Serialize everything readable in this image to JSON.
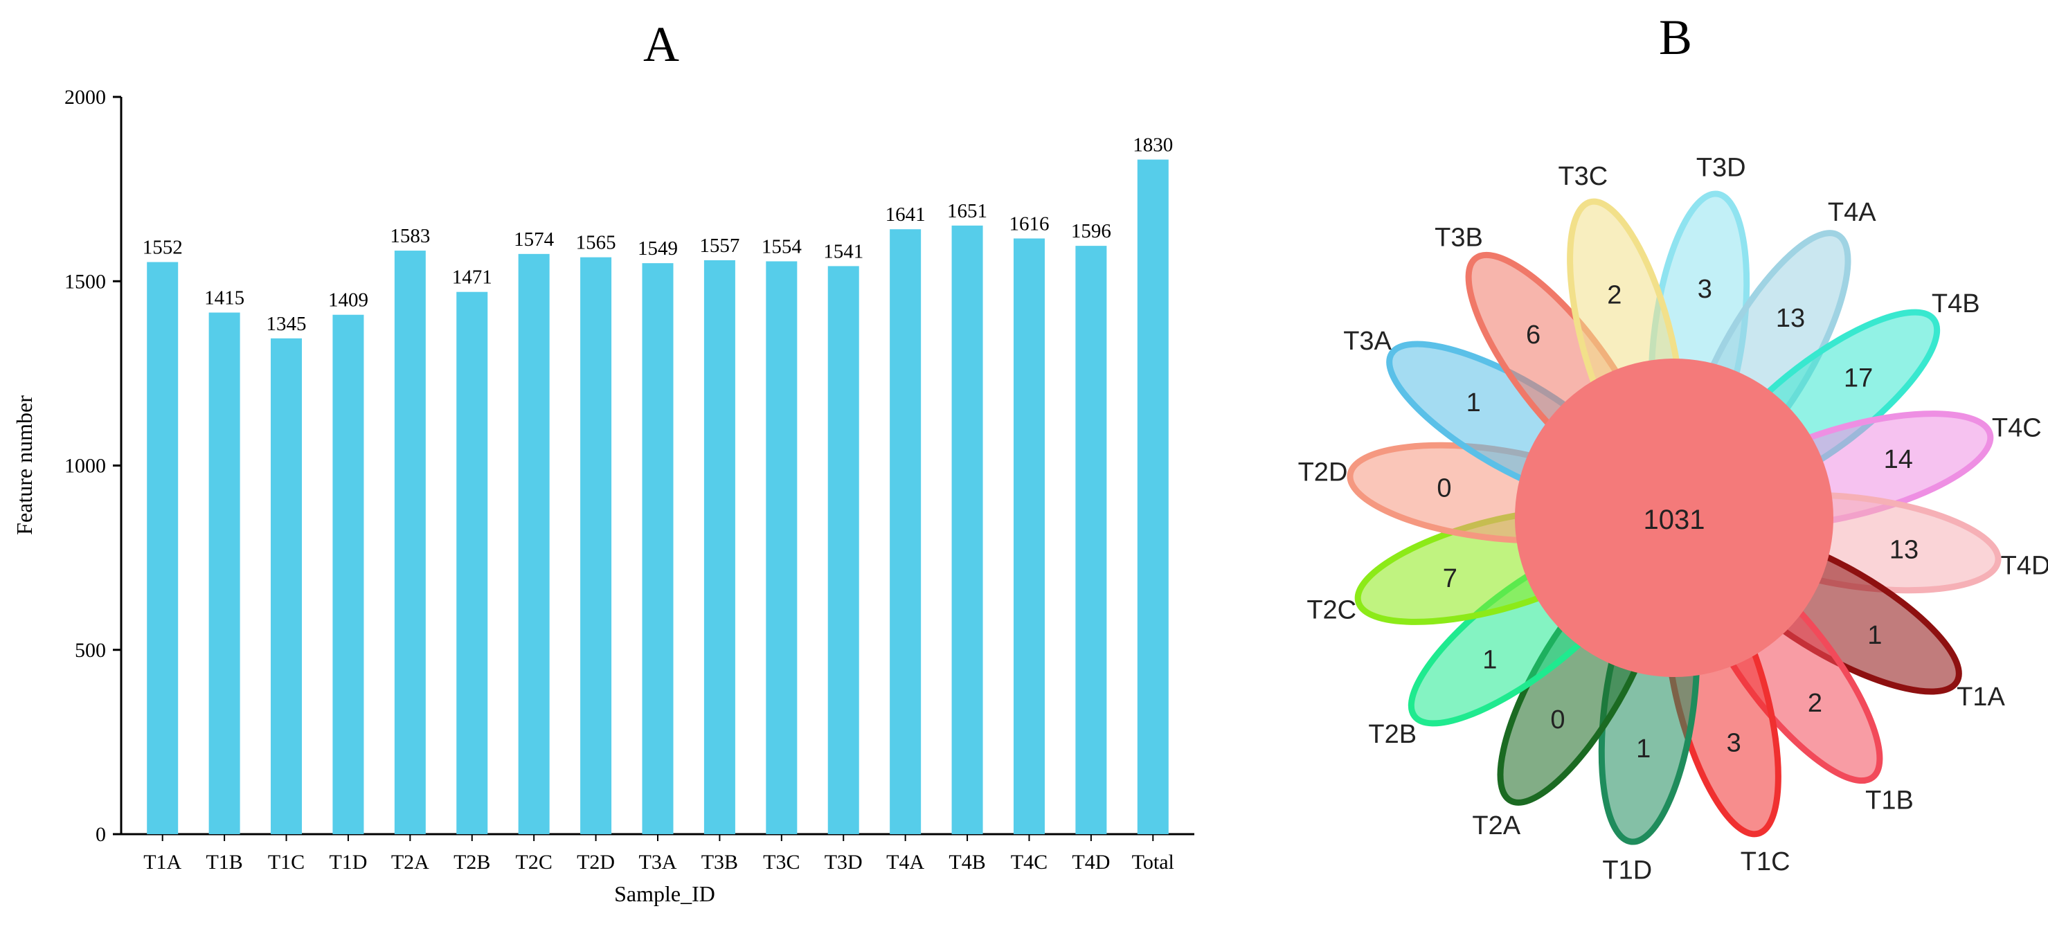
{
  "chart_data": [
    {
      "type": "bar",
      "panel_label": "A",
      "title": "",
      "xlabel": "Sample_ID",
      "ylabel": "Feature number",
      "ylim": [
        0,
        2000
      ],
      "yticks": [
        "0",
        "500",
        "1000",
        "1500",
        "2000"
      ],
      "ytick_values": [
        0,
        500,
        1000,
        1500,
        2000
      ],
      "categories": [
        "T1A",
        "T1B",
        "T1C",
        "T1D",
        "T2A",
        "T2B",
        "T2C",
        "T2D",
        "T3A",
        "T3B",
        "T3C",
        "T3D",
        "T4A",
        "T4B",
        "T4C",
        "T4D",
        "Total"
      ],
      "values": [
        1552,
        1415,
        1345,
        1409,
        1583,
        1471,
        1574,
        1565,
        1549,
        1557,
        1554,
        1541,
        1641,
        1651,
        1616,
        1596,
        1830
      ],
      "bar_color": "#56CDEA"
    },
    {
      "type": "flower",
      "panel_label": "B",
      "core": {
        "value": "1031",
        "color": "#F47A7A"
      },
      "petals": [
        {
          "name": "T3D",
          "value": "3",
          "color": "#8FE3F0"
        },
        {
          "name": "T4A",
          "value": "13",
          "color": "#9FD3E3"
        },
        {
          "name": "T4B",
          "value": "17",
          "color": "#38E8CF"
        },
        {
          "name": "T4C",
          "value": "14",
          "color": "#EE8FE3"
        },
        {
          "name": "T4D",
          "value": "13",
          "color": "#F6B0B6"
        },
        {
          "name": "T1A",
          "value": "1",
          "color": "#8E1010"
        },
        {
          "name": "T1B",
          "value": "2",
          "color": "#F24A5A"
        },
        {
          "name": "T1C",
          "value": "3",
          "color": "#F03030"
        },
        {
          "name": "T1D",
          "value": "1",
          "color": "#1F8C5C"
        },
        {
          "name": "T2A",
          "value": "0",
          "color": "#1B6A22"
        },
        {
          "name": "T2B",
          "value": "1",
          "color": "#1FEA8F"
        },
        {
          "name": "T2C",
          "value": "7",
          "color": "#8CEA18"
        },
        {
          "name": "T2D",
          "value": "0",
          "color": "#F59880"
        },
        {
          "name": "T3A",
          "value": "1",
          "color": "#5AC0E8"
        },
        {
          "name": "T3B",
          "value": "6",
          "color": "#F07868"
        },
        {
          "name": "T3C",
          "value": "2",
          "color": "#F2E08A"
        }
      ]
    }
  ]
}
